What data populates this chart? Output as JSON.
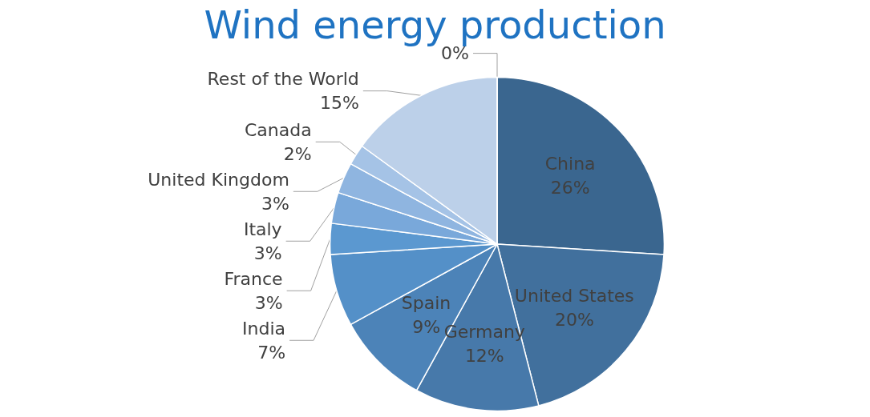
{
  "chart_data": {
    "type": "pie",
    "title": "Wind energy production",
    "categories": [
      "China",
      "United States",
      "Germany",
      "Spain",
      "India",
      "France",
      "Italy",
      "United Kingdom",
      "Canada",
      "Rest of the World",
      null
    ],
    "values": [
      26,
      20,
      12,
      9,
      7,
      3,
      3,
      3,
      2,
      15,
      0
    ],
    "value_labels": [
      "26%",
      "20%",
      "12%",
      "9%",
      "7%",
      "3%",
      "3%",
      "3%",
      "2%",
      "15%",
      "0%"
    ],
    "colors": [
      "#3a668f",
      "#41709d",
      "#4779aa",
      "#4c83b8",
      "#5490c8",
      "#5b98d0",
      "#79a8da",
      "#8fb5e0",
      "#a5c3e6",
      "#bcd0e9",
      "#c6d9f0"
    ],
    "legend": false
  }
}
